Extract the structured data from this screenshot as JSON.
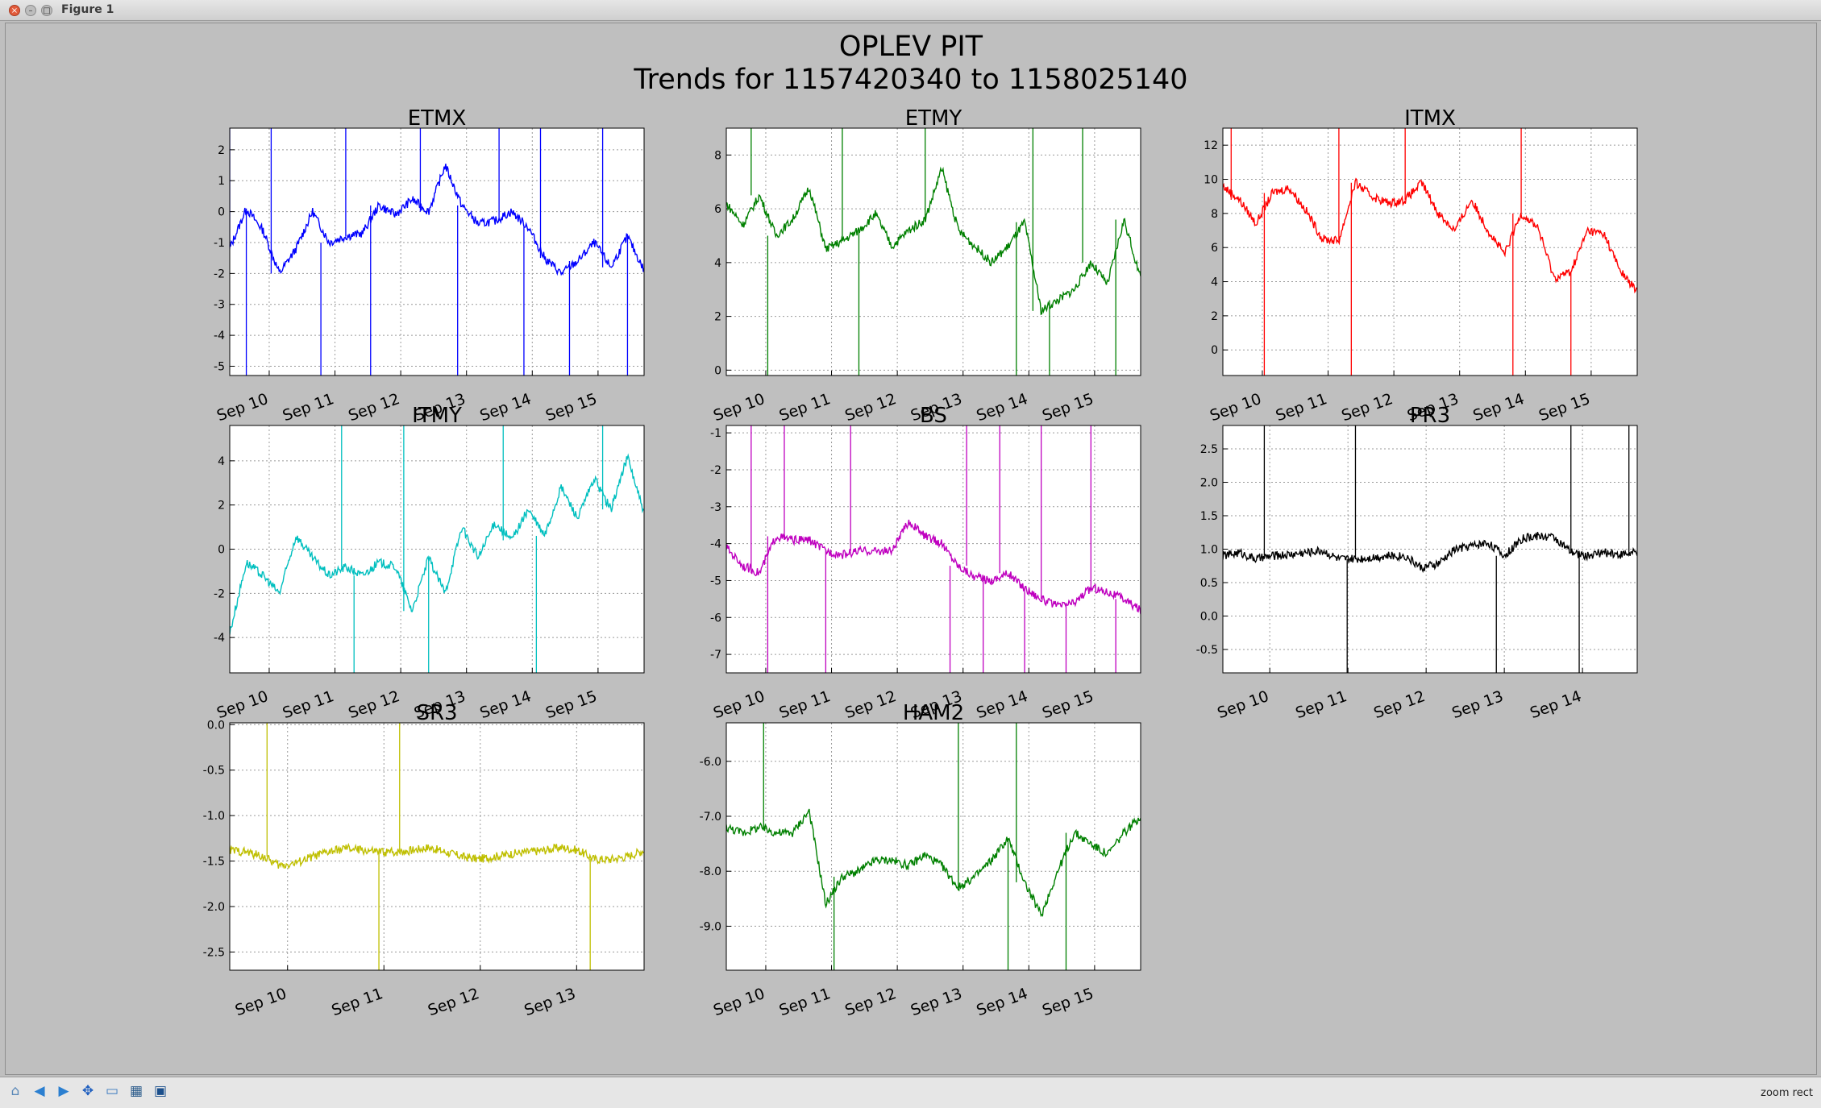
{
  "window": {
    "title": "Figure 1",
    "close_glyph": "×",
    "min_glyph": "–",
    "max_glyph": "□"
  },
  "figure": {
    "title_line1": "OPLEV PIT",
    "title_line2": "Trends for 1157420340 to 1158025140"
  },
  "toolbar": {
    "buttons": [
      {
        "name": "home-icon",
        "glyph": "⌂",
        "color": "#5a88b8"
      },
      {
        "name": "back-arrow-icon",
        "glyph": "◀",
        "color": "#2b7fd0"
      },
      {
        "name": "forward-arrow-icon",
        "glyph": "▶",
        "color": "#2b7fd0"
      },
      {
        "name": "pan-move-icon",
        "glyph": "✥",
        "color": "#1f5fbf"
      },
      {
        "name": "zoom-rect-icon",
        "glyph": "▭",
        "color": "#3a7ac0"
      },
      {
        "name": "configure-subplots-icon",
        "glyph": "▦",
        "color": "#2a5a8a"
      },
      {
        "name": "save-icon",
        "glyph": "▣",
        "color": "#1b4f8c"
      }
    ],
    "status_text": "zoom rect"
  },
  "chart_data": [
    {
      "type": "line",
      "title": "ETMX",
      "color": "#0000ff",
      "ylim": [
        -5.3,
        2.7
      ],
      "yticks": [
        -5,
        -4,
        -3,
        -2,
        -1,
        0,
        1,
        2
      ],
      "xticks": [
        "Sep 10",
        "Sep 11",
        "Sep 12",
        "Sep 13",
        "Sep 14",
        "Sep 15"
      ],
      "grid": true,
      "series": [
        {
          "x": [
            0,
            0.04,
            0.08,
            0.12,
            0.16,
            0.2,
            0.24,
            0.28,
            0.32,
            0.36,
            0.4,
            0.44,
            0.48,
            0.52,
            0.56,
            0.6,
            0.64,
            0.68,
            0.72,
            0.76,
            0.8,
            0.84,
            0.88,
            0.92,
            0.96,
            1
          ],
          "values": [
            -1.2,
            0.1,
            -0.6,
            -2.0,
            -1.2,
            0.0,
            -1.0,
            -0.8,
            -0.7,
            0.2,
            -0.1,
            0.4,
            0.0,
            1.5,
            0.2,
            -0.4,
            -0.3,
            0.0,
            -0.5,
            -1.5,
            -2.0,
            -1.6,
            -1.0,
            -1.8,
            -0.8,
            -1.9
          ],
          "spikes": [
            0.0,
            0.04,
            0.1,
            0.22,
            0.28,
            0.34,
            0.46,
            0.55,
            0.65,
            0.71,
            0.75,
            0.82,
            0.9,
            0.96
          ]
        }
      ]
    },
    {
      "type": "line",
      "title": "ETMY",
      "color": "#008000",
      "ylim": [
        -0.2,
        9
      ],
      "yticks": [
        0,
        2,
        4,
        6,
        8
      ],
      "xticks": [
        "Sep 10",
        "Sep 11",
        "Sep 12",
        "Sep 13",
        "Sep 14",
        "Sep 15"
      ],
      "grid": true,
      "series": [
        {
          "x": [
            0,
            0.04,
            0.08,
            0.12,
            0.16,
            0.2,
            0.24,
            0.28,
            0.32,
            0.36,
            0.4,
            0.44,
            0.48,
            0.52,
            0.56,
            0.6,
            0.64,
            0.68,
            0.72,
            0.76,
            0.8,
            0.84,
            0.88,
            0.92,
            0.96,
            1
          ],
          "values": [
            6.2,
            5.4,
            6.5,
            5.0,
            5.6,
            6.8,
            4.5,
            4.8,
            5.2,
            5.8,
            4.6,
            5.2,
            5.6,
            7.5,
            5.2,
            4.6,
            4.0,
            4.6,
            5.5,
            2.2,
            2.6,
            3.0,
            4.0,
            3.2,
            5.6,
            3.4
          ],
          "spikes": [
            0.06,
            0.1,
            0.28,
            0.32,
            0.48,
            0.7,
            0.74,
            0.78,
            0.86,
            0.94
          ]
        }
      ]
    },
    {
      "type": "line",
      "title": "ITMX",
      "color": "#ff0000",
      "ylim": [
        -1.5,
        13
      ],
      "yticks": [
        0,
        2,
        4,
        6,
        8,
        10,
        12
      ],
      "xticks": [
        "Sep 10",
        "Sep 11",
        "Sep 12",
        "Sep 13",
        "Sep 14",
        "Sep 15"
      ],
      "grid": true,
      "series": [
        {
          "x": [
            0,
            0.04,
            0.08,
            0.12,
            0.16,
            0.2,
            0.24,
            0.28,
            0.32,
            0.36,
            0.4,
            0.44,
            0.48,
            0.52,
            0.56,
            0.6,
            0.64,
            0.68,
            0.72,
            0.76,
            0.8,
            0.84,
            0.88,
            0.92,
            0.96,
            1
          ],
          "values": [
            9.6,
            8.8,
            7.4,
            9.2,
            9.5,
            8.2,
            6.5,
            6.4,
            9.8,
            9.0,
            8.6,
            8.8,
            9.8,
            8.0,
            7.0,
            8.8,
            7.0,
            5.6,
            8.0,
            7.2,
            4.2,
            4.6,
            7.0,
            6.8,
            4.6,
            3.4
          ],
          "spikes": [
            0.02,
            0.1,
            0.28,
            0.31,
            0.44,
            0.7,
            0.72,
            0.84
          ]
        }
      ]
    },
    {
      "type": "line",
      "title": "ITMY",
      "color": "#00bfbf",
      "ylim": [
        -5.6,
        5.6
      ],
      "yticks": [
        -4,
        -2,
        0,
        2,
        4
      ],
      "xticks": [
        "Sep 10",
        "Sep 11",
        "Sep 12",
        "Sep 13",
        "Sep 14",
        "Sep 15"
      ],
      "grid": true,
      "series": [
        {
          "x": [
            0,
            0.04,
            0.08,
            0.12,
            0.16,
            0.2,
            0.24,
            0.28,
            0.32,
            0.36,
            0.4,
            0.44,
            0.48,
            0.52,
            0.56,
            0.6,
            0.64,
            0.68,
            0.72,
            0.76,
            0.8,
            0.84,
            0.88,
            0.92,
            0.96,
            1
          ],
          "values": [
            -3.8,
            -0.6,
            -1.2,
            -2.0,
            0.6,
            -0.4,
            -1.2,
            -0.8,
            -1.2,
            -0.6,
            -0.8,
            -2.8,
            -0.4,
            -2.0,
            1.0,
            -0.4,
            1.2,
            0.4,
            1.8,
            0.6,
            2.8,
            1.4,
            3.2,
            1.8,
            4.2,
            1.6
          ],
          "spikes": [
            0.27,
            0.3,
            0.42,
            0.48,
            0.66,
            0.74,
            0.9
          ]
        }
      ]
    },
    {
      "type": "line",
      "title": "BS",
      "color": "#bf00bf",
      "ylim": [
        -7.5,
        -0.8
      ],
      "yticks": [
        -7,
        -6,
        -5,
        -4,
        -3,
        -2,
        -1
      ],
      "xticks": [
        "Sep 10",
        "Sep 11",
        "Sep 12",
        "Sep 13",
        "Sep 14",
        "Sep 15"
      ],
      "grid": true,
      "series": [
        {
          "x": [
            0,
            0.04,
            0.08,
            0.12,
            0.16,
            0.2,
            0.24,
            0.28,
            0.32,
            0.36,
            0.4,
            0.44,
            0.48,
            0.52,
            0.56,
            0.6,
            0.64,
            0.68,
            0.72,
            0.76,
            0.8,
            0.84,
            0.88,
            0.92,
            0.96,
            1
          ],
          "values": [
            -4.1,
            -4.6,
            -4.8,
            -3.8,
            -3.9,
            -3.9,
            -4.2,
            -4.3,
            -4.2,
            -4.2,
            -4.2,
            -3.4,
            -3.8,
            -4.0,
            -4.6,
            -4.9,
            -5.0,
            -4.8,
            -5.2,
            -5.5,
            -5.7,
            -5.6,
            -5.2,
            -5.3,
            -5.5,
            -5.8
          ],
          "spikes": [
            0.06,
            0.1,
            0.14,
            0.24,
            0.3,
            0.54,
            0.58,
            0.62,
            0.66,
            0.72,
            0.76,
            0.82,
            0.88,
            0.94
          ]
        }
      ]
    },
    {
      "type": "line",
      "title": "PR3",
      "color": "#000000",
      "ylim": [
        -0.85,
        2.85
      ],
      "yticks": [
        -0.5,
        0.0,
        0.5,
        1.0,
        1.5,
        2.0,
        2.5
      ],
      "xticks": [
        "Sep 10",
        "Sep 11",
        "Sep 12",
        "Sep 13",
        "Sep 14"
      ],
      "grid": true,
      "series": [
        {
          "x": [
            0,
            0.04,
            0.08,
            0.12,
            0.16,
            0.2,
            0.24,
            0.28,
            0.32,
            0.36,
            0.4,
            0.44,
            0.48,
            0.52,
            0.56,
            0.6,
            0.64,
            0.68,
            0.72,
            0.76,
            0.8,
            0.84,
            0.88,
            0.92,
            0.96,
            1
          ],
          "values": [
            0.9,
            0.95,
            0.85,
            0.9,
            0.92,
            0.95,
            0.98,
            0.85,
            0.85,
            0.88,
            0.9,
            0.9,
            0.72,
            0.78,
            1.0,
            1.05,
            1.1,
            0.9,
            1.15,
            1.2,
            1.18,
            0.95,
            0.9,
            0.95,
            0.92,
            0.95
          ],
          "spikes": [
            0.1,
            0.3,
            0.32,
            0.66,
            0.84,
            0.86,
            0.98
          ]
        }
      ]
    },
    {
      "type": "line",
      "title": "SR3",
      "color": "#bfbf00",
      "ylim": [
        -2.7,
        0.02
      ],
      "yticks": [
        -2.5,
        -2.0,
        -1.5,
        -1.0,
        -0.5,
        0.0
      ],
      "xticks": [
        "Sep 10",
        "Sep 11",
        "Sep 12",
        "Sep 13"
      ],
      "grid": true,
      "series": [
        {
          "x": [
            0,
            0.04,
            0.08,
            0.12,
            0.16,
            0.2,
            0.24,
            0.28,
            0.32,
            0.36,
            0.4,
            0.44,
            0.48,
            0.52,
            0.56,
            0.6,
            0.64,
            0.68,
            0.72,
            0.76,
            0.8,
            0.84,
            0.88,
            0.92,
            0.96,
            1
          ],
          "values": [
            -1.38,
            -1.4,
            -1.45,
            -1.55,
            -1.52,
            -1.45,
            -1.4,
            -1.36,
            -1.38,
            -1.4,
            -1.4,
            -1.38,
            -1.35,
            -1.4,
            -1.45,
            -1.48,
            -1.45,
            -1.42,
            -1.4,
            -1.38,
            -1.35,
            -1.38,
            -1.48,
            -1.48,
            -1.45,
            -1.38
          ],
          "spikes": [
            0.09,
            0.36,
            0.41,
            0.87
          ]
        }
      ]
    },
    {
      "type": "line",
      "title": "HAM2",
      "color": "#008000",
      "ylim": [
        -9.8,
        -5.3
      ],
      "yticks": [
        -9,
        -8,
        -7,
        -6
      ],
      "xticks": [
        "Sep 10",
        "Sep 11",
        "Sep 12",
        "Sep 13",
        "Sep 14",
        "Sep 15"
      ],
      "grid": true,
      "series": [
        {
          "x": [
            0,
            0.04,
            0.08,
            0.12,
            0.16,
            0.2,
            0.24,
            0.28,
            0.32,
            0.36,
            0.4,
            0.44,
            0.48,
            0.52,
            0.56,
            0.6,
            0.64,
            0.68,
            0.72,
            0.76,
            0.8,
            0.84,
            0.88,
            0.92,
            0.96,
            1
          ],
          "values": [
            -7.2,
            -7.3,
            -7.2,
            -7.3,
            -7.3,
            -6.9,
            -8.6,
            -8.1,
            -8.0,
            -7.8,
            -7.8,
            -7.9,
            -7.7,
            -7.9,
            -8.3,
            -8.1,
            -7.8,
            -7.4,
            -8.2,
            -8.8,
            -8.0,
            -7.3,
            -7.5,
            -7.7,
            -7.3,
            -7.0
          ],
          "spikes": [
            0.09,
            0.26,
            0.56,
            0.68,
            0.7,
            0.82
          ]
        }
      ]
    }
  ]
}
